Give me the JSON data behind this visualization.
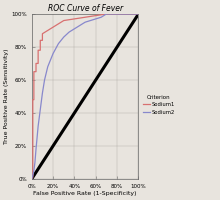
{
  "title": "ROC Curve of Fever",
  "xlabel": "False Positive Rate (1-Specificity)",
  "ylabel": "True Positive Rate (Sensitivity)",
  "xlim": [
    0,
    1
  ],
  "ylim": [
    0,
    1
  ],
  "xticks": [
    0,
    0.2,
    0.4,
    0.6,
    0.8,
    1.0
  ],
  "yticks": [
    0,
    0.2,
    0.4,
    0.6,
    0.8,
    1.0
  ],
  "xticklabels": [
    "0%",
    "20%",
    "40%",
    "60%",
    "80%",
    "100%"
  ],
  "yticklabels": [
    "0%",
    "20%",
    "40%",
    "60%",
    "80%",
    "100%"
  ],
  "criterion_label": "Criterion",
  "legend_entries": [
    "Sodium1",
    "Sodium2"
  ],
  "color_sodium1": "#d87070",
  "color_sodium2": "#8888cc",
  "color_diagonal": "#000000",
  "background_color": "#e8e4de",
  "sodium1_x": [
    0.0,
    0.01,
    0.01,
    0.02,
    0.02,
    0.04,
    0.04,
    0.06,
    0.06,
    0.08,
    0.08,
    0.1,
    0.1,
    0.15,
    0.2,
    0.25,
    0.3,
    0.4,
    0.5,
    0.6,
    0.7,
    1.0
  ],
  "sodium1_y": [
    0.0,
    0.01,
    0.48,
    0.48,
    0.65,
    0.65,
    0.7,
    0.7,
    0.78,
    0.78,
    0.84,
    0.84,
    0.88,
    0.9,
    0.92,
    0.94,
    0.96,
    0.97,
    0.98,
    0.99,
    1.0,
    1.0
  ],
  "sodium2_x": [
    0.0,
    0.01,
    0.02,
    0.03,
    0.04,
    0.05,
    0.06,
    0.08,
    0.1,
    0.12,
    0.15,
    0.2,
    0.25,
    0.3,
    0.35,
    0.4,
    0.45,
    0.5,
    0.55,
    0.6,
    0.65,
    0.7,
    1.0
  ],
  "sodium2_y": [
    0.0,
    0.02,
    0.05,
    0.1,
    0.18,
    0.25,
    0.32,
    0.42,
    0.52,
    0.6,
    0.68,
    0.76,
    0.82,
    0.86,
    0.89,
    0.91,
    0.93,
    0.95,
    0.96,
    0.97,
    0.98,
    1.0,
    1.0
  ]
}
